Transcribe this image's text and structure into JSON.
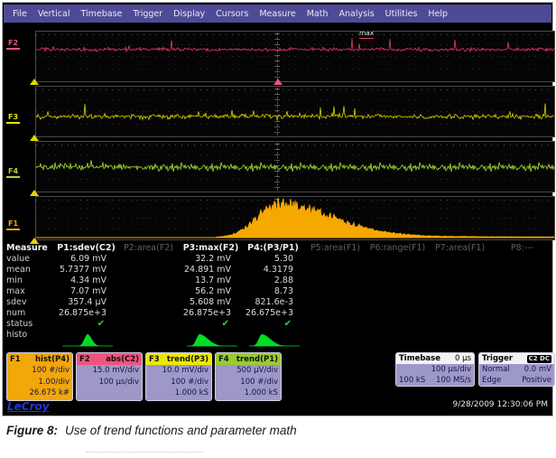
{
  "menu": {
    "items": [
      "File",
      "Vertical",
      "Timebase",
      "Trigger",
      "Display",
      "Cursors",
      "Measure",
      "Math",
      "Analysis",
      "Utilities",
      "Help"
    ]
  },
  "plot": {
    "max_label": "max",
    "trace_labels": [
      {
        "id": "F2",
        "color": "#f0547e"
      },
      {
        "id": "F3",
        "color": "#e8e400"
      },
      {
        "id": "F4",
        "color": "#a6d832"
      },
      {
        "id": "F1",
        "color": "#f2a70a"
      }
    ],
    "waveforms": [
      {
        "trace": "F2",
        "type": "noise",
        "color": "#e83a62",
        "base": 0.36,
        "amp": 0.06,
        "spike": 0.22,
        "seed": 11
      },
      {
        "trace": "F3",
        "type": "noise",
        "color": "#d8d400",
        "base": 0.6,
        "amp": 0.08,
        "spike": 0.26,
        "seed": 23
      },
      {
        "trace": "F4",
        "type": "noise",
        "color": "#a8dc30",
        "base": 0.5,
        "amp": 0.12,
        "spike": 0.16,
        "seed": 37
      },
      {
        "trace": "F1",
        "type": "histogram",
        "color": "#f5a800",
        "peak_x": 0.465,
        "peak_h": 0.74,
        "sigma_l": 0.04,
        "sigma_r": 0.105,
        "tail": 0.05,
        "seed": 5
      }
    ]
  },
  "measure": {
    "corner_label": "Measure",
    "row_labels": [
      "value",
      "mean",
      "min",
      "max",
      "sdev",
      "num",
      "status",
      "histo"
    ],
    "columns": [
      {
        "header": "P1:sdev(C2)",
        "dimmed": false,
        "values": [
          "6.09 mV",
          "5.7377 mV",
          "4.34 mV",
          "7.07 mV",
          "357.4 µV",
          "26.875e+3"
        ],
        "status": true,
        "histo": "center"
      },
      {
        "header": "P2:area(F2)",
        "dimmed": true,
        "values": [
          "",
          "",
          "",
          "",
          "",
          ""
        ],
        "status": false,
        "histo": ""
      },
      {
        "header": "P3:max(F2)",
        "dimmed": false,
        "values": [
          "32.2 mV",
          "24.891 mV",
          "13.7 mV",
          "56.2 mV",
          "5.608 mV",
          "26.875e+3"
        ],
        "status": true,
        "histo": "left"
      },
      {
        "header": "P4:(P3/P1)",
        "dimmed": false,
        "values": [
          "5.30",
          "4.3179",
          "2.88",
          "8.73",
          "821.6e-3",
          "26.675e+3"
        ],
        "status": true,
        "histo": "left"
      },
      {
        "header": "P5:area(F1)",
        "dimmed": true,
        "values": [
          "",
          "",
          "",
          "",
          "",
          ""
        ],
        "status": false,
        "histo": ""
      },
      {
        "header": "P6:range(F1)",
        "dimmed": true,
        "values": [
          "",
          "",
          "",
          "",
          "",
          ""
        ],
        "status": false,
        "histo": ""
      },
      {
        "header": "P7:area(F1)",
        "dimmed": true,
        "values": [
          "",
          "",
          "",
          "",
          "",
          ""
        ],
        "status": false,
        "histo": ""
      },
      {
        "header": "P8:---",
        "dimmed": true,
        "values": [
          "",
          "",
          "",
          "",
          "",
          ""
        ],
        "status": false,
        "histo": ""
      }
    ]
  },
  "descriptors": [
    {
      "id": "F1",
      "func": "hist(P4)",
      "header_color": "#f2a70a",
      "solid": true,
      "lines": [
        "100 #/div",
        "1.00/div",
        "26.675 k#"
      ]
    },
    {
      "id": "F2",
      "func": "abs(C2)",
      "header_color": "#f0547e",
      "solid": false,
      "lines": [
        "15.0 mV/div",
        "100 µs/div",
        ""
      ]
    },
    {
      "id": "F3",
      "func": "trend(P3)",
      "header_color": "#ece800",
      "solid": false,
      "lines": [
        "10.0 mV/div",
        "100 #/div",
        "1.000 kS"
      ]
    },
    {
      "id": "F4",
      "func": "trend(P1)",
      "header_color": "#98cc30",
      "solid": false,
      "lines": [
        "500 µV/div",
        "100 #/div",
        "1.000 kS"
      ]
    }
  ],
  "timebase": {
    "title": "Timebase",
    "offset": "0 µs",
    "per_div": "100 µs/div",
    "samples": "100 kS",
    "rate": "100 MS/s"
  },
  "trigger": {
    "title": "Trigger",
    "badge": "C2 DC",
    "mode": "Normal",
    "level": "0.0 mV",
    "kind": "Edge",
    "slope": "Positive"
  },
  "branding": {
    "logo": "LeCroy",
    "timestamp": "9/28/2009 12:30:06 PM"
  },
  "caption": {
    "label": "Figure 8:",
    "text": "Use of trend functions and parameter math"
  },
  "colors": {
    "menubar": "#4f4a96",
    "panel_body": "#9e98c8",
    "check_green": "#30d040",
    "histo_icon_green": "#00dd22"
  }
}
